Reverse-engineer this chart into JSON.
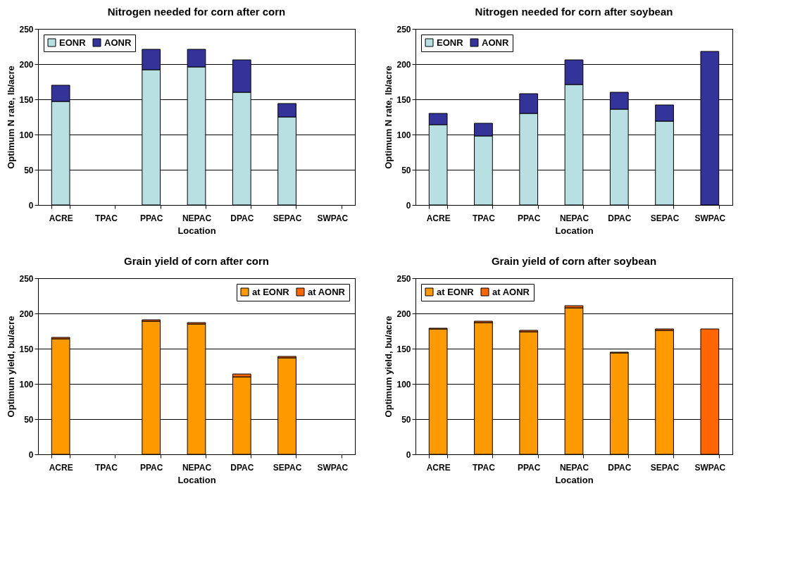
{
  "chart_data": [
    {
      "type": "bar",
      "title": "Nitrogen needed for corn after corn",
      "xlabel": "Location",
      "ylabel": "Optimum N rate, lb/acre",
      "categories": [
        "ACRE",
        "TPAC",
        "PPAC",
        "NEPAC",
        "DPAC",
        "SEPAC",
        "SWPAC"
      ],
      "stacked": true,
      "ylim": [
        0,
        250
      ],
      "yticks": [
        0,
        50,
        100,
        150,
        200,
        250
      ],
      "grid": "y",
      "legend": "top left",
      "series": [
        {
          "name": "EONR",
          "color": "#b8e0e2",
          "values": [
            147,
            null,
            192,
            196,
            160,
            125,
            null
          ]
        },
        {
          "name": "AONR",
          "color": "#333399",
          "values": [
            23,
            null,
            29,
            25,
            46,
            19,
            null
          ]
        }
      ]
    },
    {
      "type": "bar",
      "title": "Nitrogen needed for corn after soybean",
      "xlabel": "Location",
      "ylabel": "Optimum N rate, lb/acre",
      "categories": [
        "ACRE",
        "TPAC",
        "PPAC",
        "NEPAC",
        "DPAC",
        "SEPAC",
        "SWPAC"
      ],
      "stacked": true,
      "ylim": [
        0,
        250
      ],
      "yticks": [
        0,
        50,
        100,
        150,
        200,
        250
      ],
      "grid": "y",
      "legend": "top left",
      "series": [
        {
          "name": "EONR",
          "color": "#b8e0e2",
          "values": [
            114,
            98,
            130,
            171,
            136,
            119,
            null
          ]
        },
        {
          "name": "AONR",
          "color": "#333399",
          "values": [
            16,
            18,
            28,
            35,
            24,
            23,
            218
          ]
        }
      ]
    },
    {
      "type": "bar",
      "title": "Grain yield of corn after corn",
      "xlabel": "Location",
      "ylabel": "Optimum yield, bu/acre",
      "categories": [
        "ACRE",
        "TPAC",
        "PPAC",
        "NEPAC",
        "DPAC",
        "SEPAC",
        "SWPAC"
      ],
      "stacked": true,
      "ylim": [
        0,
        250
      ],
      "yticks": [
        0,
        50,
        100,
        150,
        200,
        250
      ],
      "grid": "y",
      "legend": "top right",
      "series": [
        {
          "name": "at EONR",
          "color": "#ff9900",
          "values": [
            164,
            null,
            189,
            185,
            110,
            137,
            null
          ]
        },
        {
          "name": "at AONR",
          "color": "#ff6600",
          "values": [
            2,
            null,
            2,
            2,
            4,
            2,
            null
          ]
        }
      ]
    },
    {
      "type": "bar",
      "title": "Grain yield of corn after soybean",
      "xlabel": "Location",
      "ylabel": "Optimum yield, bu/acre",
      "categories": [
        "ACRE",
        "TPAC",
        "PPAC",
        "NEPAC",
        "DPAC",
        "SEPAC",
        "SWPAC"
      ],
      "stacked": true,
      "ylim": [
        0,
        250
      ],
      "yticks": [
        0,
        50,
        100,
        150,
        200,
        250
      ],
      "grid": "y",
      "legend": "top left",
      "series": [
        {
          "name": "at EONR",
          "color": "#ff9900",
          "values": [
            178,
            187,
            174,
            208,
            144,
            176,
            null
          ]
        },
        {
          "name": "at AONR",
          "color": "#ff6600",
          "values": [
            1,
            2,
            2,
            3,
            1,
            2,
            178
          ]
        }
      ]
    }
  ]
}
